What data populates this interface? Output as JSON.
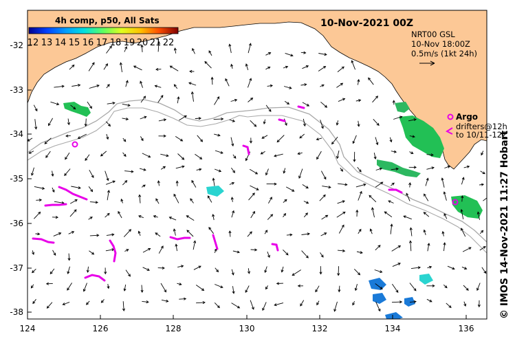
{
  "title": "10-Nov-2021 00Z",
  "colorbar": {
    "title": "4h comp, p50, All Sats",
    "ticks": [
      "12",
      "13",
      "14",
      "15",
      "16",
      "17",
      "18",
      "19",
      "20",
      "21",
      "22"
    ],
    "colors": [
      "#00008f",
      "#0040ff",
      "#00a0ff",
      "#00e0e0",
      "#40ff80",
      "#a0ff40",
      "#ffff00",
      "#ffb000",
      "#ff6000",
      "#e00000",
      "#800000"
    ]
  },
  "current_legend": {
    "line1": "NRT00 GSL",
    "line2": "10-Nov 18:00Z",
    "line3": "0.5m/s (1kt 24h)"
  },
  "argo_legend": {
    "label": "Argo",
    "drifters_line1": "drifters@12h",
    "drifters_line2": "to 10/11-12Z"
  },
  "credit": "© IMOS 14-Nov-2021 11:27 Hobart",
  "axes": {
    "x_ticks": [
      "124",
      "126",
      "128",
      "130",
      "132",
      "134",
      "136"
    ],
    "y_ticks": [
      "-32",
      "-33",
      "-34",
      "-35",
      "-36",
      "-37",
      "-38"
    ]
  },
  "colors": {
    "land": "#fcc896",
    "sst_green": "#22c055",
    "sst_cyan": "#2ad4d0",
    "sst_blue": "#1a7ad8",
    "argo": "#e800e8"
  }
}
